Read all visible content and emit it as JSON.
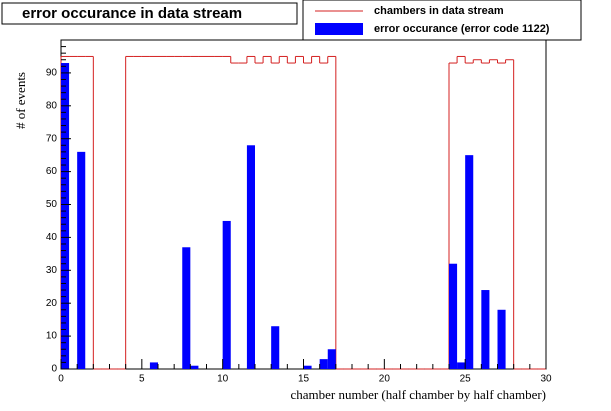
{
  "chart_data": {
    "type": "histogram",
    "title": "error occurance in data stream",
    "xlabel": "chamber number (half chamber by half chamber)",
    "ylabel": "# of events",
    "bins": [
      0,
      0.5,
      1,
      1.5,
      2,
      2.5,
      3,
      3.5,
      4,
      4.5,
      5,
      5.5,
      6,
      6.5,
      7,
      7.5,
      8,
      8.5,
      9,
      9.5,
      10,
      10.5,
      11,
      11.5,
      12,
      12.5,
      13,
      13.5,
      14,
      14.5,
      15,
      15.5,
      16,
      16.5,
      17,
      17.5,
      18,
      18.5,
      19,
      19.5,
      20,
      20.5,
      21,
      21.5,
      22,
      22.5,
      23,
      23.5,
      24,
      24.5,
      25,
      25.5,
      26,
      26.5,
      27,
      27.5,
      28,
      28.5,
      29,
      29.5,
      30
    ],
    "series": [
      {
        "name": "chambers in data stream",
        "color": "#d42020",
        "style": "step",
        "values": [
          95,
          95,
          95,
          95,
          0,
          0,
          0,
          0,
          95,
          95,
          95,
          95,
          95,
          95,
          95,
          95,
          95,
          95,
          95,
          95,
          95,
          93,
          93,
          95,
          93,
          95,
          93,
          95,
          93,
          95,
          93,
          95,
          93,
          95,
          0,
          0,
          0,
          0,
          0,
          0,
          0,
          0,
          0,
          0,
          0,
          0,
          0,
          0,
          93,
          95,
          93,
          94,
          93,
          94,
          93,
          94,
          0,
          0,
          0,
          0
        ]
      },
      {
        "name": "error occurance (error code 1122)",
        "color": "#0000ff",
        "style": "fill",
        "values": [
          93,
          0,
          66,
          0,
          0,
          0,
          0,
          0,
          0,
          0,
          0,
          2,
          0,
          0,
          0,
          37,
          1,
          0,
          0,
          0,
          45,
          0,
          0,
          68,
          0,
          0,
          13,
          0,
          0,
          0,
          1,
          0,
          3,
          6,
          0,
          0,
          0,
          0,
          0,
          0,
          0,
          0,
          0,
          0,
          0,
          0,
          0,
          0,
          32,
          2,
          65,
          0,
          24,
          0,
          18,
          0,
          0,
          0,
          0,
          0
        ]
      }
    ],
    "xlim": [
      0,
      30
    ],
    "xticks": [
      0,
      5,
      10,
      15,
      20,
      25,
      30
    ],
    "ylim": [
      0,
      100
    ],
    "yticks": [
      0,
      10,
      20,
      30,
      40,
      50,
      60,
      70,
      80,
      90
    ]
  }
}
